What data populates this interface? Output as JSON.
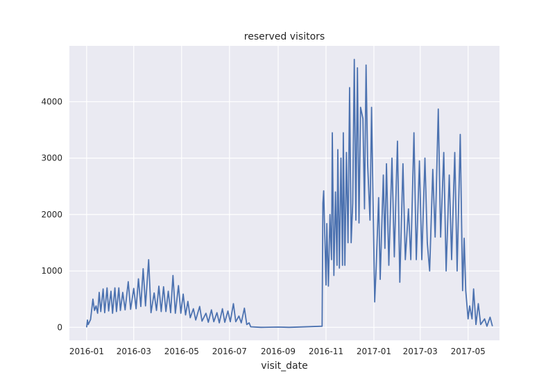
{
  "chart_data": {
    "type": "line",
    "title": "reserved visitors",
    "xlabel": "visit_date",
    "ylabel": "",
    "x_type": "date",
    "xlim": [
      "2015-12-10",
      "2017-06-10"
    ],
    "ylim": [
      -230,
      4990
    ],
    "x_ticks": [
      "2016-01-01",
      "2016-03-01",
      "2016-05-01",
      "2016-07-01",
      "2016-09-01",
      "2016-11-01",
      "2017-01-01",
      "2017-03-01",
      "2017-05-01"
    ],
    "x_tick_labels": [
      "2016-01",
      "2016-03",
      "2016-05",
      "2016-07",
      "2016-09",
      "2016-11",
      "2017-01",
      "2017-03",
      "2017-05"
    ],
    "y_ticks": [
      0,
      1000,
      2000,
      3000,
      4000
    ],
    "y_tick_labels": [
      "0",
      "1000",
      "2000",
      "3000",
      "4000"
    ],
    "grid": true,
    "background": "#eaeaf2",
    "line_color": "#4c72b0",
    "series": [
      {
        "points": [
          [
            "2016-01-01",
            0
          ],
          [
            "2016-01-02",
            130
          ],
          [
            "2016-01-03",
            50
          ],
          [
            "2016-01-06",
            140
          ],
          [
            "2016-01-09",
            500
          ],
          [
            "2016-01-11",
            300
          ],
          [
            "2016-01-13",
            380
          ],
          [
            "2016-01-15",
            250
          ],
          [
            "2016-01-17",
            620
          ],
          [
            "2016-01-19",
            280
          ],
          [
            "2016-01-22",
            680
          ],
          [
            "2016-01-24",
            260
          ],
          [
            "2016-01-27",
            700
          ],
          [
            "2016-01-29",
            290
          ],
          [
            "2016-02-01",
            640
          ],
          [
            "2016-02-03",
            250
          ],
          [
            "2016-02-06",
            700
          ],
          [
            "2016-02-08",
            280
          ],
          [
            "2016-02-11",
            700
          ],
          [
            "2016-02-13",
            300
          ],
          [
            "2016-02-16",
            620
          ],
          [
            "2016-02-19",
            310
          ],
          [
            "2016-02-23",
            810
          ],
          [
            "2016-02-26",
            320
          ],
          [
            "2016-03-01",
            690
          ],
          [
            "2016-03-04",
            330
          ],
          [
            "2016-03-07",
            860
          ],
          [
            "2016-03-10",
            370
          ],
          [
            "2016-03-13",
            1040
          ],
          [
            "2016-03-16",
            380
          ],
          [
            "2016-03-20",
            1200
          ],
          [
            "2016-03-23",
            260
          ],
          [
            "2016-03-27",
            610
          ],
          [
            "2016-03-30",
            300
          ],
          [
            "2016-04-02",
            730
          ],
          [
            "2016-04-05",
            280
          ],
          [
            "2016-04-08",
            720
          ],
          [
            "2016-04-11",
            280
          ],
          [
            "2016-04-14",
            640
          ],
          [
            "2016-04-17",
            260
          ],
          [
            "2016-04-20",
            920
          ],
          [
            "2016-04-23",
            250
          ],
          [
            "2016-04-27",
            740
          ],
          [
            "2016-04-30",
            250
          ],
          [
            "2016-05-03",
            590
          ],
          [
            "2016-05-06",
            220
          ],
          [
            "2016-05-09",
            460
          ],
          [
            "2016-05-12",
            170
          ],
          [
            "2016-05-16",
            330
          ],
          [
            "2016-05-19",
            130
          ],
          [
            "2016-05-24",
            370
          ],
          [
            "2016-05-27",
            110
          ],
          [
            "2016-06-01",
            250
          ],
          [
            "2016-06-04",
            90
          ],
          [
            "2016-06-08",
            310
          ],
          [
            "2016-06-11",
            100
          ],
          [
            "2016-06-15",
            260
          ],
          [
            "2016-06-18",
            80
          ],
          [
            "2016-06-22",
            330
          ],
          [
            "2016-06-25",
            90
          ],
          [
            "2016-06-29",
            290
          ],
          [
            "2016-07-02",
            100
          ],
          [
            "2016-07-06",
            420
          ],
          [
            "2016-07-09",
            100
          ],
          [
            "2016-07-13",
            200
          ],
          [
            "2016-07-16",
            80
          ],
          [
            "2016-07-20",
            340
          ],
          [
            "2016-07-23",
            50
          ],
          [
            "2016-07-26",
            80
          ],
          [
            "2016-07-28",
            10
          ],
          [
            "2016-08-10",
            0
          ],
          [
            "2016-09-01",
            5
          ],
          [
            "2016-09-15",
            0
          ],
          [
            "2016-10-27",
            20
          ],
          [
            "2016-10-28",
            2200
          ],
          [
            "2016-10-29",
            2420
          ],
          [
            "2016-11-01",
            750
          ],
          [
            "2016-11-02",
            1840
          ],
          [
            "2016-11-04",
            730
          ],
          [
            "2016-11-06",
            2000
          ],
          [
            "2016-11-08",
            1200
          ],
          [
            "2016-11-09",
            3450
          ],
          [
            "2016-11-11",
            920
          ],
          [
            "2016-11-13",
            2400
          ],
          [
            "2016-11-15",
            1100
          ],
          [
            "2016-11-16",
            3150
          ],
          [
            "2016-11-18",
            1050
          ],
          [
            "2016-11-20",
            3000
          ],
          [
            "2016-11-22",
            1100
          ],
          [
            "2016-11-23",
            3450
          ],
          [
            "2016-11-25",
            1100
          ],
          [
            "2016-11-27",
            3100
          ],
          [
            "2016-11-29",
            1500
          ],
          [
            "2016-12-01",
            4250
          ],
          [
            "2016-12-03",
            1500
          ],
          [
            "2016-12-05",
            2200
          ],
          [
            "2016-12-07",
            4750
          ],
          [
            "2016-12-09",
            1900
          ],
          [
            "2016-12-11",
            4600
          ],
          [
            "2016-12-13",
            1850
          ],
          [
            "2016-12-15",
            3900
          ],
          [
            "2016-12-18",
            3700
          ],
          [
            "2016-12-20",
            2100
          ],
          [
            "2016-12-22",
            4650
          ],
          [
            "2016-12-24",
            2900
          ],
          [
            "2016-12-27",
            1900
          ],
          [
            "2016-12-29",
            3900
          ],
          [
            "2017-01-02",
            450
          ],
          [
            "2017-01-04",
            1100
          ],
          [
            "2017-01-07",
            2300
          ],
          [
            "2017-01-09",
            850
          ],
          [
            "2017-01-13",
            2700
          ],
          [
            "2017-01-15",
            1400
          ],
          [
            "2017-01-17",
            2900
          ],
          [
            "2017-01-20",
            1100
          ],
          [
            "2017-01-24",
            3000
          ],
          [
            "2017-01-27",
            1250
          ],
          [
            "2017-01-31",
            3300
          ],
          [
            "2017-02-03",
            800
          ],
          [
            "2017-02-07",
            2900
          ],
          [
            "2017-02-10",
            1200
          ],
          [
            "2017-02-14",
            2100
          ],
          [
            "2017-02-17",
            1200
          ],
          [
            "2017-02-21",
            3450
          ],
          [
            "2017-02-24",
            1200
          ],
          [
            "2017-02-28",
            2950
          ],
          [
            "2017-03-03",
            1200
          ],
          [
            "2017-03-07",
            3000
          ],
          [
            "2017-03-10",
            1500
          ],
          [
            "2017-03-13",
            1000
          ],
          [
            "2017-03-17",
            2800
          ],
          [
            "2017-03-20",
            1600
          ],
          [
            "2017-03-24",
            3870
          ],
          [
            "2017-03-27",
            1600
          ],
          [
            "2017-03-31",
            3100
          ],
          [
            "2017-04-03",
            1000
          ],
          [
            "2017-04-07",
            2700
          ],
          [
            "2017-04-10",
            1200
          ],
          [
            "2017-04-14",
            3100
          ],
          [
            "2017-04-17",
            1000
          ],
          [
            "2017-04-21",
            3420
          ],
          [
            "2017-04-24",
            650
          ],
          [
            "2017-04-26",
            1580
          ],
          [
            "2017-04-28",
            650
          ],
          [
            "2017-05-01",
            150
          ],
          [
            "2017-05-03",
            380
          ],
          [
            "2017-05-06",
            150
          ],
          [
            "2017-05-08",
            680
          ],
          [
            "2017-05-11",
            50
          ],
          [
            "2017-05-14",
            420
          ],
          [
            "2017-05-17",
            50
          ],
          [
            "2017-05-22",
            150
          ],
          [
            "2017-05-25",
            20
          ],
          [
            "2017-05-29",
            180
          ],
          [
            "2017-06-01",
            20
          ]
        ]
      }
    ]
  }
}
